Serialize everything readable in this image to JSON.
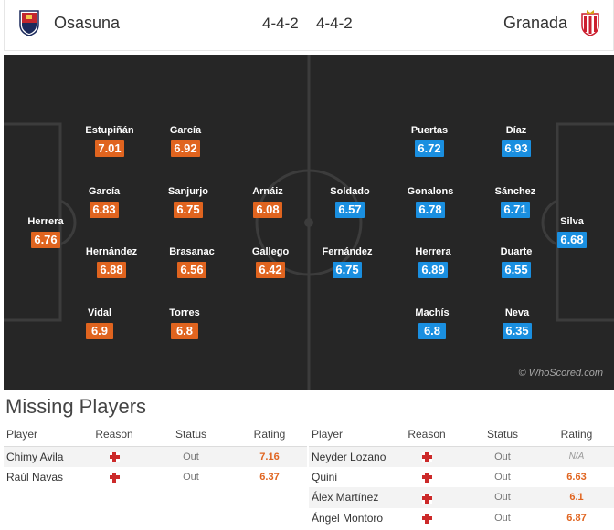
{
  "header": {
    "home_team": "Osasuna",
    "home_formation": "4-4-2",
    "away_formation": "4-4-2",
    "away_team": "Granada",
    "home_color": "#c1272d",
    "away_color": "#cc1f2f"
  },
  "pitch": {
    "watermark": "© WhoScored.com",
    "home_players": [
      {
        "name": "Estupiñán",
        "rating": "7.01"
      },
      {
        "name": "García",
        "rating": "6.92"
      },
      {
        "name": "García",
        "rating": "6.83"
      },
      {
        "name": "Sanjurjo",
        "rating": "6.75"
      },
      {
        "name": "Arnáiz",
        "rating": "6.08"
      },
      {
        "name": "Herrera",
        "rating": "6.76"
      },
      {
        "name": "Hernández",
        "rating": "6.88"
      },
      {
        "name": "Brasanac",
        "rating": "6.56"
      },
      {
        "name": "Gallego",
        "rating": "6.42"
      },
      {
        "name": "Vidal",
        "rating": "6.9"
      },
      {
        "name": "Torres",
        "rating": "6.8"
      }
    ],
    "away_players": [
      {
        "name": "Puertas",
        "rating": "6.72"
      },
      {
        "name": "Díaz",
        "rating": "6.93"
      },
      {
        "name": "Soldado",
        "rating": "6.57"
      },
      {
        "name": "Gonalons",
        "rating": "6.78"
      },
      {
        "name": "Sánchez",
        "rating": "6.71"
      },
      {
        "name": "Silva",
        "rating": "6.68"
      },
      {
        "name": "Fernández",
        "rating": "6.75"
      },
      {
        "name": "Herrera",
        "rating": "6.89"
      },
      {
        "name": "Duarte",
        "rating": "6.55"
      },
      {
        "name": "Machís",
        "rating": "6.8"
      },
      {
        "name": "Neva",
        "rating": "6.35"
      }
    ]
  },
  "missing": {
    "title": "Missing Players",
    "columns": {
      "player": "Player",
      "reason": "Reason",
      "status": "Status",
      "rating": "Rating"
    },
    "home": [
      {
        "player": "Chimy Avila",
        "reason_icon": "injury-icon",
        "status": "Out",
        "rating": "7.16"
      },
      {
        "player": "Raúl Navas",
        "reason_icon": "injury-icon",
        "status": "Out",
        "rating": "6.37"
      }
    ],
    "away": [
      {
        "player": "Neyder Lozano",
        "reason_icon": "injury-icon",
        "status": "Out",
        "rating": "N/A"
      },
      {
        "player": "Quini",
        "reason_icon": "injury-icon",
        "status": "Out",
        "rating": "6.63"
      },
      {
        "player": "Álex Martínez",
        "reason_icon": "injury-icon",
        "status": "Out",
        "rating": "6.1"
      },
      {
        "player": "Ángel Montoro",
        "reason_icon": "injury-icon",
        "status": "Out",
        "rating": "6.87"
      }
    ]
  }
}
